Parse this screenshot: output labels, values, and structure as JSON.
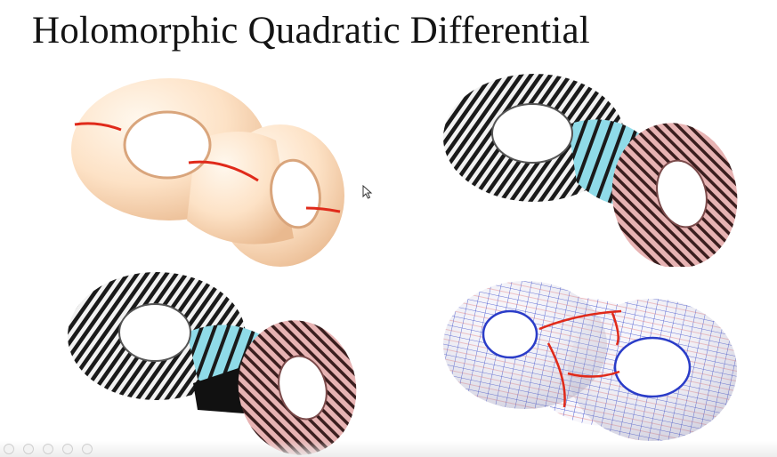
{
  "slide": {
    "title": "Holomorphic Quadratic Differential"
  },
  "figures": [
    {
      "name": "genus-two-surface-with-red-cuts",
      "style": "plain surface with red cut curves"
    },
    {
      "name": "genus-two-surface-with-stripes",
      "style": "striped foliation with cyan and pink cylinders"
    },
    {
      "name": "genus-two-surface-stripes-decomposed",
      "style": "striped cylinders pulled apart"
    },
    {
      "name": "genus-two-surface-grid",
      "style": "quad mesh with red critical trajectories"
    }
  ],
  "colors": {
    "title": "#141414",
    "surface_cream": "#fde2c6",
    "stripe_dark": "#1a1a1a",
    "cyan_patch": "#8fdbe8",
    "pink_patch": "#dca2a2",
    "grid_blue": "#2a3cc8",
    "cut_red": "#e02a1a"
  },
  "viewer_controls": [
    {
      "icon": "previous-slide-icon"
    },
    {
      "icon": "pen-icon"
    },
    {
      "icon": "slides-grid-icon"
    },
    {
      "icon": "zoom-icon"
    },
    {
      "icon": "more-options-icon"
    }
  ]
}
